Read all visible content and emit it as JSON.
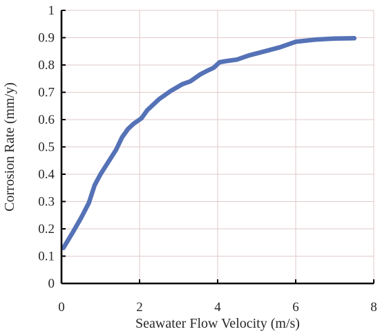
{
  "chart_data": {
    "type": "line",
    "title": "",
    "xlabel": "Seawater Flow Velocity (m/s)",
    "ylabel": "Corrosion Rate (mm/y)",
    "xlim": [
      0,
      8
    ],
    "ylim": [
      0,
      1
    ],
    "xticks": [
      0,
      2,
      4,
      6,
      8
    ],
    "yticks": [
      0,
      0.1,
      0.2,
      0.3,
      0.4,
      0.5,
      0.6,
      0.7,
      0.8,
      0.9,
      1
    ],
    "xtick_labels": [
      "0",
      "2",
      "4",
      "6",
      "8"
    ],
    "ytick_labels": [
      "0",
      "0.1",
      "0.2",
      "0.3",
      "0.4",
      "0.5",
      "0.6",
      "0.7",
      "0.8",
      "0.9",
      "1"
    ],
    "grid": true,
    "series": [
      {
        "color": "#5572b6",
        "x": [
          0.05,
          0.3,
          0.5,
          0.7,
          0.85,
          1.0,
          1.2,
          1.4,
          1.55,
          1.7,
          1.85,
          2.05,
          2.2,
          2.5,
          2.8,
          3.1,
          3.3,
          3.55,
          3.75,
          3.9,
          4.05,
          4.25,
          4.5,
          4.8,
          5.2,
          5.6,
          6.0,
          6.5,
          7.0,
          7.5
        ],
        "y": [
          0.13,
          0.19,
          0.24,
          0.295,
          0.36,
          0.4,
          0.445,
          0.49,
          0.535,
          0.565,
          0.585,
          0.605,
          0.635,
          0.675,
          0.705,
          0.73,
          0.74,
          0.765,
          0.78,
          0.79,
          0.81,
          0.815,
          0.82,
          0.835,
          0.85,
          0.865,
          0.885,
          0.893,
          0.897,
          0.898
        ]
      }
    ]
  }
}
